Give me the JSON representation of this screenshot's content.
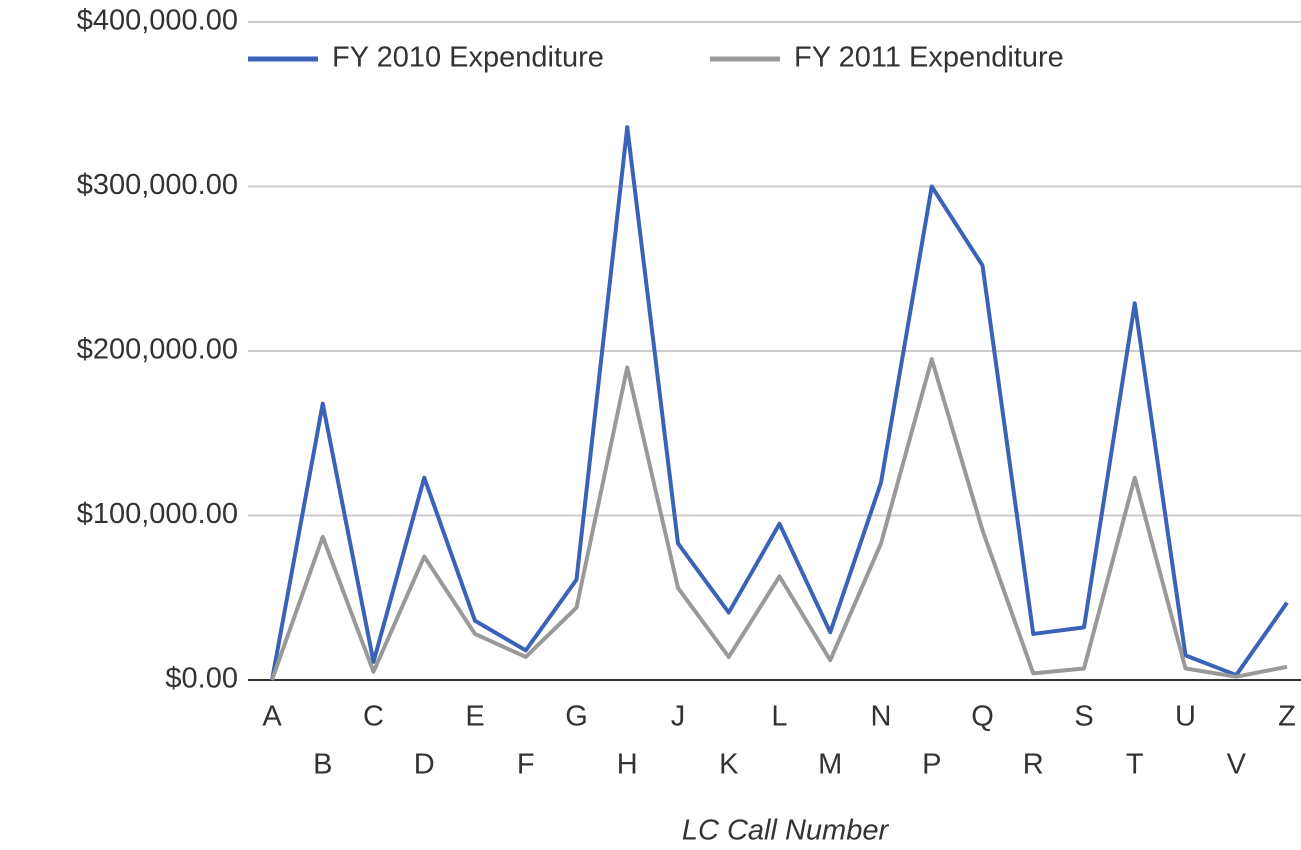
{
  "chart_data": {
    "type": "line",
    "x_label": "LC Call Number",
    "categories": [
      "A",
      "B",
      "C",
      "D",
      "E",
      "F",
      "G",
      "H",
      "J",
      "K",
      "L",
      "M",
      "N",
      "P",
      "Q",
      "R",
      "S",
      "T",
      "U",
      "V",
      "Z"
    ],
    "series": [
      {
        "name": "FY 2010 Expenditure",
        "color": "#3a62b8",
        "values": [
          0,
          168000,
          11000,
          123000,
          36000,
          18000,
          61000,
          336000,
          83000,
          41000,
          95000,
          29000,
          120000,
          300000,
          252000,
          28000,
          32000,
          229000,
          15000,
          3000,
          47000
        ]
      },
      {
        "name": "FY 2011 Expenditure",
        "color": "#999999",
        "values": [
          0,
          87000,
          5000,
          75000,
          28000,
          14000,
          44000,
          190000,
          56000,
          14000,
          63000,
          12000,
          83000,
          195000,
          91000,
          4000,
          7000,
          123000,
          7000,
          2000,
          8000
        ]
      }
    ],
    "ylim": [
      0,
      400000
    ],
    "yticks": [
      {
        "value": 0,
        "label": "$0.00"
      },
      {
        "value": 100000,
        "label": "$100,000.00"
      },
      {
        "value": 200000,
        "label": "$200,000.00"
      },
      {
        "value": 300000,
        "label": "$300,000.00"
      },
      {
        "value": 400000,
        "label": "$400,000.00"
      }
    ],
    "grid": true,
    "legend": "top"
  }
}
